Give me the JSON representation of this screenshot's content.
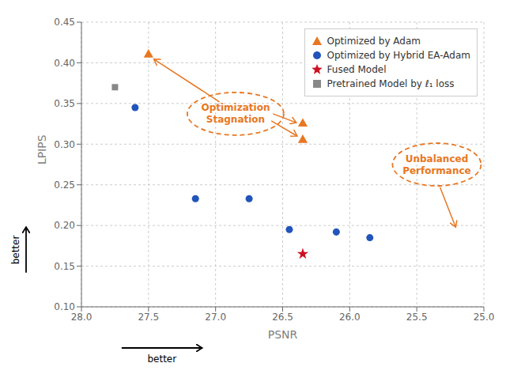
{
  "chart_data": {
    "type": "scatter",
    "xlabel": "PSNR",
    "ylabel": "LPIPS",
    "xlim": [
      28.0,
      25.0
    ],
    "ylim": [
      0.1,
      0.45
    ],
    "xticks": [
      {
        "value": 28.0,
        "label": "28.0"
      },
      27.5,
      {
        "value": 27.0,
        "label": "27.0"
      },
      26.5,
      {
        "value": 26.0,
        "label": "26.0"
      },
      25.5,
      {
        "value": 25.0,
        "label": "25.0"
      }
    ],
    "yticks": [
      {
        "value": 0.1,
        "label": "0.10"
      },
      0.15,
      {
        "value": 0.2,
        "label": "0.20"
      },
      0.25,
      {
        "value": 0.3,
        "label": "0.30"
      },
      0.35,
      {
        "value": 0.4,
        "label": "0.40"
      },
      0.45
    ],
    "grid": true,
    "legend": "upper right",
    "series": [
      {
        "name": "Optimized by Adam",
        "color": "#E87722",
        "marker": "triangle",
        "x": [
          27.5,
          26.35,
          26.35
        ],
        "values": [
          0.41,
          0.325,
          0.305
        ]
      },
      {
        "name": "Optimized by Hybrid EA-Adam",
        "color": "#2255BB",
        "marker": "circle",
        "x": [
          27.6,
          27.15,
          26.75,
          26.45,
          26.1,
          25.85
        ],
        "values": [
          0.345,
          0.233,
          0.233,
          0.195,
          0.192,
          0.185
        ]
      },
      {
        "name": "Fused Model",
        "color": "#CC1122",
        "marker": "star",
        "x": [
          26.35
        ],
        "values": [
          0.165
        ]
      },
      {
        "name": "Pretrained Model by ℓ₁ loss",
        "color": "#888888",
        "marker": "square",
        "x": [
          27.75
        ],
        "values": [
          0.37
        ]
      }
    ],
    "annotations": [
      "Optimization\nStagnation",
      "Unbalanced\nPerformance",
      "better",
      "better"
    ]
  }
}
